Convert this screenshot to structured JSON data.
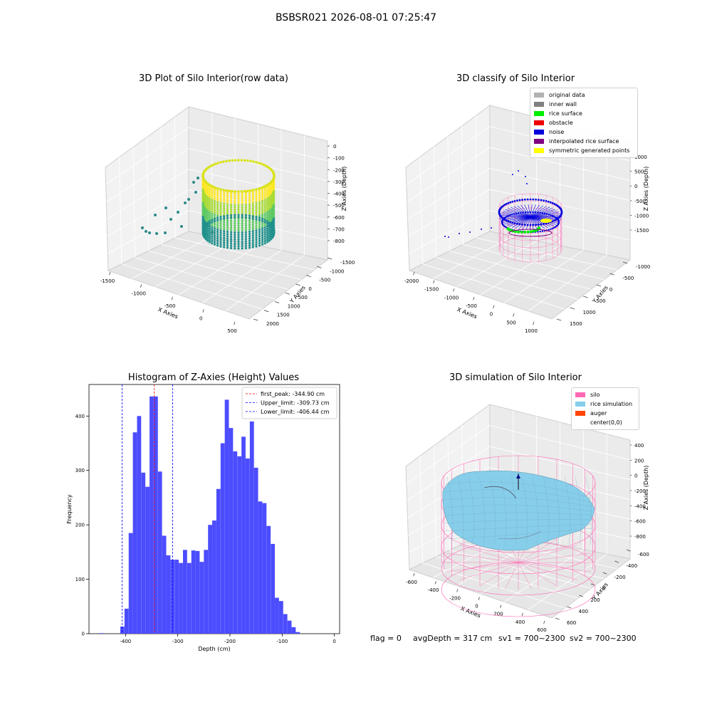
{
  "figure": {
    "suptitle": "BSBSR021 2026-08-01 07:25:47",
    "footer": {
      "flag": "flag = 0",
      "avg_depth": "avgDepth = 317 cm",
      "sv1": "sv1 = 700~2300",
      "sv2": "sv2 = 700~2300"
    }
  },
  "panel1": {
    "title": "3D Plot of Silo Interior(row data)",
    "xlabel": "X Axies",
    "ylabel": "Y Axies",
    "zlabel": "Z Axies (Depth)",
    "xticks": [
      "-1500",
      "-1000",
      "-500",
      "0",
      "500"
    ],
    "yticks": [
      "2000",
      "1500",
      "1000",
      "500",
      "0",
      "-500",
      "-1000",
      "-1500"
    ],
    "zticks": [
      "0",
      "-100",
      "-200",
      "-300",
      "-400",
      "-500",
      "-600",
      "-700",
      "-800"
    ]
  },
  "panel2": {
    "title": "3D classify of Silo Interior",
    "xlabel": "X Axies",
    "ylabel": "Y Axies",
    "zlabel": "Z Axies (Depth)",
    "xticks": [
      "-2000",
      "-1500",
      "-1000",
      "-500",
      "0",
      "500",
      "1000"
    ],
    "yticks": [
      "1500",
      "1000",
      "500",
      "0",
      "-500",
      "-1000"
    ],
    "zticks": [
      "1000",
      "500",
      "0",
      "-500",
      "-1000",
      "-1500"
    ],
    "legend": [
      {
        "label": "original data",
        "color": "#b2b2b2"
      },
      {
        "label": "inner wall",
        "color": "#808080"
      },
      {
        "label": "rice surface",
        "color": "#00ee00"
      },
      {
        "label": "obstacle",
        "color": "#ee0000"
      },
      {
        "label": "noise",
        "color": "#0000dd"
      },
      {
        "label": "interpolated rice surface",
        "color": "#800080"
      },
      {
        "label": "symmetric generated points",
        "color": "#ffff00"
      }
    ]
  },
  "panel4": {
    "title": "3D simulation of Silo Interior",
    "xlabel": "X Axies",
    "ylabel": "Y Axies",
    "zlabel": "Z Axies (Depth)",
    "xticks": [
      "-600",
      "-400",
      "-200",
      "0",
      "200",
      "400",
      "600"
    ],
    "yticks": [
      "600",
      "400",
      "200",
      "0",
      "-200",
      "-400",
      "-600"
    ],
    "zticks": [
      "400",
      "200",
      "0",
      "-200",
      "-400",
      "-600",
      "-800"
    ],
    "legend": [
      {
        "label": "silo",
        "color": "#ff69b4"
      },
      {
        "label": "rice simulation",
        "color": "#87ceeb"
      },
      {
        "label": "auger",
        "color": "#ff4500"
      },
      {
        "label": "center(0,0)",
        "color": "#ffffff"
      }
    ],
    "colors": {
      "silo": "#ff69b4",
      "rice": "#87ceeb",
      "auger": "#ff4500",
      "center": "#000080"
    }
  },
  "chart_data": [
    {
      "type": "scatter",
      "title": "3D Plot of Silo Interior(row data)",
      "xlabel": "X Axies",
      "ylabel": "Y Axies",
      "zlabel": "Z Axies (Depth)",
      "xlim": [
        -1700,
        600
      ],
      "ylim": [
        -1500,
        2000
      ],
      "zlim": [
        -850,
        50
      ],
      "colormap": "viridis"
    },
    {
      "type": "scatter",
      "title": "3D classify of Silo Interior",
      "xlabel": "X Axies",
      "ylabel": "Y Axies",
      "zlabel": "Z Axies (Depth)",
      "xlim": [
        -2200,
        1100
      ],
      "ylim": [
        -1200,
        1700
      ],
      "zlim": [
        -1700,
        1100
      ],
      "legend_position": "top-right"
    },
    {
      "type": "bar",
      "title": "Histogram of Z-Axies (Height) Values",
      "xlabel": "Depth (cm)",
      "ylabel": "Frequency",
      "xlim": [
        -470,
        10
      ],
      "ylim": [
        0,
        458
      ],
      "xticks": [
        -400,
        -300,
        -200,
        -100,
        0
      ],
      "yticks": [
        0,
        100,
        200,
        300,
        400
      ],
      "bin_width": 7.9,
      "bins_start": [
        -450,
        -442,
        -434,
        -426,
        -418,
        -410,
        -402,
        -394,
        -386,
        -378,
        -370,
        -362,
        -354,
        -346,
        -338,
        -330,
        -322,
        -314,
        -306,
        -298,
        -290,
        -282,
        -274,
        -266,
        -258,
        -250,
        -242,
        -234,
        -226,
        -218,
        -210,
        -202,
        -194,
        -186,
        -178,
        -170,
        -162,
        -154,
        -146,
        -138,
        -130,
        -122,
        -114,
        -106,
        -98,
        -90,
        -82,
        -74,
        -66,
        -58,
        -50,
        -42,
        -34,
        -26,
        -18
      ],
      "values": [
        1,
        0,
        0,
        0,
        0,
        13,
        46,
        185,
        370,
        400,
        296,
        270,
        436,
        436,
        298,
        180,
        144,
        136,
        136,
        130,
        154,
        130,
        153,
        152,
        132,
        154,
        200,
        208,
        266,
        350,
        430,
        378,
        335,
        326,
        362,
        322,
        390,
        305,
        243,
        240,
        198,
        165,
        66,
        60,
        36,
        24,
        12,
        3,
        0,
        0,
        0,
        0,
        0,
        0,
        0
      ],
      "vlines": [
        {
          "label": "first_peak: -344.90 cm",
          "x": -344.9,
          "color": "#ff0000"
        },
        {
          "label": "Upper_limit: -309.73 cm",
          "x": -309.73,
          "color": "#0000ff"
        },
        {
          "label": "Lower_limit: -406.44 cm",
          "x": -406.44,
          "color": "#0000ff"
        }
      ],
      "bar_color": "#4c4cff",
      "legend_position": "top-right"
    },
    {
      "type": "area",
      "title": "3D simulation of Silo Interior",
      "xlabel": "X Axies",
      "ylabel": "Y Axies",
      "zlabel": "Z Axies (Depth)",
      "xlim": [
        -700,
        700
      ],
      "ylim": [
        -700,
        700
      ],
      "zlim": [
        -900,
        500
      ],
      "legend_position": "top-right"
    }
  ]
}
